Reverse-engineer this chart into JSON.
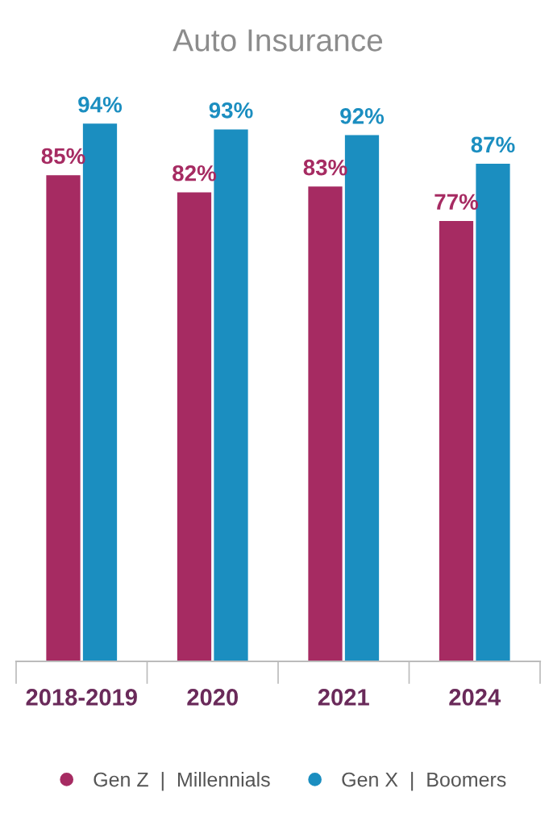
{
  "chart_data": {
    "type": "bar",
    "title": "Auto Insurance",
    "categories": [
      "2018-2019",
      "2020",
      "2021",
      "2024"
    ],
    "series": [
      {
        "name": "Gen Z  |  Millennials",
        "color": "#a62b62",
        "values": [
          85,
          82,
          83,
          77
        ],
        "value_labels": [
          "85%",
          "82%",
          "83%",
          "77%"
        ]
      },
      {
        "name": "Gen X  |  Boomers",
        "color": "#1b8ec0",
        "values": [
          94,
          93,
          92,
          87
        ],
        "value_labels": [
          "94%",
          "93%",
          "92%",
          "87%"
        ]
      }
    ],
    "grid": false,
    "legend": "bottom"
  }
}
